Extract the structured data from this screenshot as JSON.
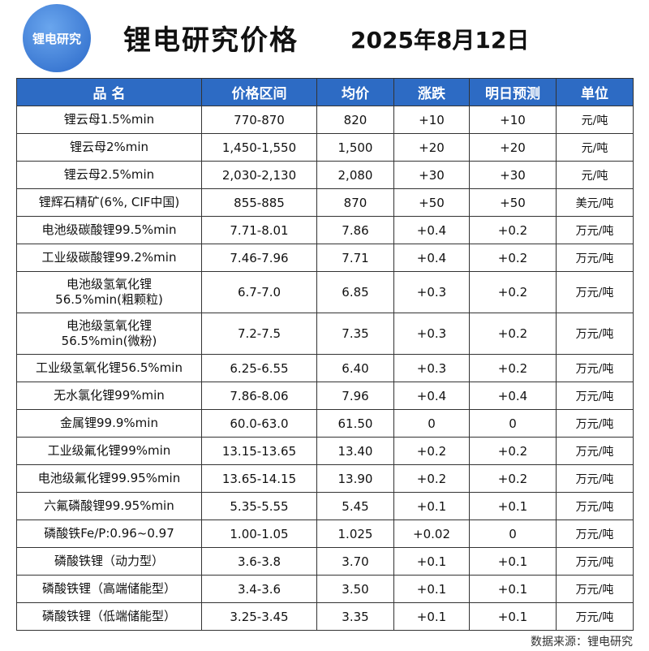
{
  "header": {
    "logo": "锂电研究",
    "title": "锂电研究价格",
    "date": "2025年8月12日"
  },
  "table": {
    "columns": [
      "品 名",
      "价格区间",
      "均价",
      "涨跌",
      "明日预测",
      "单位"
    ],
    "rows": [
      [
        [
          "锂云母1.5%min"
        ],
        "770-870",
        "820",
        "+10",
        "+10",
        "元/吨"
      ],
      [
        [
          "锂云母2%min"
        ],
        "1,450-1,550",
        "1,500",
        "+20",
        "+20",
        "元/吨"
      ],
      [
        [
          "锂云母2.5%min"
        ],
        "2,030-2,130",
        "2,080",
        "+30",
        "+30",
        "元/吨"
      ],
      [
        [
          "锂辉石精矿(6%, CIF中国)"
        ],
        "855-885",
        "870",
        "+50",
        "+50",
        "美元/吨"
      ],
      [
        [
          "电池级碳酸锂99.5%min"
        ],
        "7.71-8.01",
        "7.86",
        "+0.4",
        "+0.2",
        "万元/吨"
      ],
      [
        [
          "工业级碳酸锂99.2%min"
        ],
        "7.46-7.96",
        "7.71",
        "+0.4",
        "+0.2",
        "万元/吨"
      ],
      [
        [
          "电池级氢氧化锂",
          "56.5%min(粗颗粒)"
        ],
        "6.7-7.0",
        "6.85",
        "+0.3",
        "+0.2",
        "万元/吨"
      ],
      [
        [
          "电池级氢氧化锂",
          "56.5%min(微粉)"
        ],
        "7.2-7.5",
        "7.35",
        "+0.3",
        "+0.2",
        "万元/吨"
      ],
      [
        [
          "工业级氢氧化锂56.5%min"
        ],
        "6.25-6.55",
        "6.40",
        "+0.3",
        "+0.2",
        "万元/吨"
      ],
      [
        [
          "无水氯化锂99%min"
        ],
        "7.86-8.06",
        "7.96",
        "+0.4",
        "+0.4",
        "万元/吨"
      ],
      [
        [
          "金属锂99.9%min"
        ],
        "60.0-63.0",
        "61.50",
        "0",
        "0",
        "万元/吨"
      ],
      [
        [
          "工业级氟化锂99%min"
        ],
        "13.15-13.65",
        "13.40",
        "+0.2",
        "+0.2",
        "万元/吨"
      ],
      [
        [
          "电池级氟化锂99.95%min"
        ],
        "13.65-14.15",
        "13.90",
        "+0.2",
        "+0.2",
        "万元/吨"
      ],
      [
        [
          "六氟磷酸锂99.95%min"
        ],
        "5.35-5.55",
        "5.45",
        "+0.1",
        "+0.1",
        "万元/吨"
      ],
      [
        [
          "磷酸铁Fe/P:0.96~0.97"
        ],
        "1.00-1.05",
        "1.025",
        "+0.02",
        "0",
        "万元/吨"
      ],
      [
        [
          "磷酸铁锂（动力型）"
        ],
        "3.6-3.8",
        "3.70",
        "+0.1",
        "+0.1",
        "万元/吨"
      ],
      [
        [
          "磷酸铁锂（高端储能型）"
        ],
        "3.4-3.6",
        "3.50",
        "+0.1",
        "+0.1",
        "万元/吨"
      ],
      [
        [
          "磷酸铁锂（低端储能型）"
        ],
        "3.25-3.45",
        "3.35",
        "+0.1",
        "+0.1",
        "万元/吨"
      ]
    ]
  },
  "footer": {
    "source": "数据来源：锂电研究"
  }
}
